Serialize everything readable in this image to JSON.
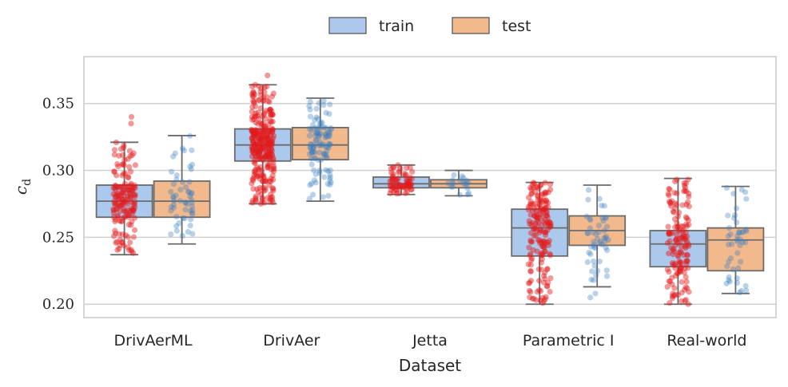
{
  "chart_data": {
    "type": "box",
    "xlabel": "Dataset",
    "ylabel_main": "c",
    "ylabel_sub": "d",
    "ylim": [
      0.19,
      0.385
    ],
    "yticks": [
      0.2,
      0.25,
      0.3,
      0.35
    ],
    "ytick_labels": [
      "0.20",
      "0.25",
      "0.30",
      "0.35"
    ],
    "grid": true,
    "legend_position": "top-center",
    "categories": [
      "DrivAerML",
      "DrivAer",
      "Jetta",
      "Parametric I",
      "Real-world"
    ],
    "series": [
      {
        "name": "train",
        "box_color": "#abc9ec",
        "point_color": "#e31a1c",
        "stats": [
          {
            "min": 0.237,
            "q1": 0.265,
            "median": 0.277,
            "q3": 0.289,
            "max": 0.321
          },
          {
            "min": 0.275,
            "q1": 0.307,
            "median": 0.319,
            "q3": 0.331,
            "max": 0.364
          },
          {
            "min": 0.282,
            "q1": 0.287,
            "median": 0.29,
            "q3": 0.295,
            "max": 0.304
          },
          {
            "min": 0.2,
            "q1": 0.236,
            "median": 0.257,
            "q3": 0.271,
            "max": 0.291
          },
          {
            "min": 0.2,
            "q1": 0.228,
            "median": 0.245,
            "q3": 0.255,
            "max": 0.294
          }
        ],
        "point_counts": [
          160,
          300,
          70,
          180,
          150
        ],
        "outliers": [
          [
            0.335,
            0.34
          ],
          [
            0.371
          ],
          [],
          [],
          []
        ]
      },
      {
        "name": "test",
        "box_color": "#f2b98c",
        "point_color": "#3a7fc1",
        "stats": [
          {
            "min": 0.245,
            "q1": 0.265,
            "median": 0.277,
            "q3": 0.292,
            "max": 0.326
          },
          {
            "min": 0.277,
            "q1": 0.308,
            "median": 0.319,
            "q3": 0.332,
            "max": 0.354
          },
          {
            "min": 0.281,
            "q1": 0.287,
            "median": 0.29,
            "q3": 0.293,
            "max": 0.3
          },
          {
            "min": 0.213,
            "q1": 0.244,
            "median": 0.255,
            "q3": 0.266,
            "max": 0.289
          },
          {
            "min": 0.208,
            "q1": 0.225,
            "median": 0.248,
            "q3": 0.257,
            "max": 0.288
          }
        ],
        "point_counts": [
          55,
          110,
          18,
          50,
          45
        ],
        "outliers": [
          [],
          [],
          [],
          [
            0.205,
            0.208
          ],
          []
        ]
      }
    ]
  }
}
